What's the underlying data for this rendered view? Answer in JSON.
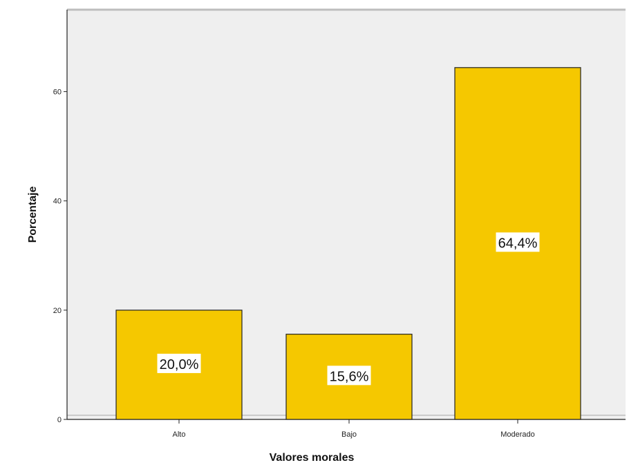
{
  "chart_data": {
    "type": "bar",
    "categories": [
      "Alto",
      "Bajo",
      "Moderado"
    ],
    "values": [
      20.0,
      15.6,
      64.4
    ],
    "data_labels": [
      "20,0%",
      "15,6%",
      "64,4%"
    ],
    "xlabel": "Valores morales",
    "ylabel": "Porcentaje",
    "ylim": [
      0,
      75
    ],
    "yticks": [
      0,
      20,
      40,
      60
    ],
    "ytick_labels": [
      "0",
      "20",
      "40",
      "60"
    ],
    "grid": false,
    "colors": {
      "bar": "#F5C800",
      "bar_edge": "#222222",
      "plot_background": "#EFEFEF",
      "frame": "#BDBDBD",
      "label_background": "#FFFFFF"
    }
  }
}
